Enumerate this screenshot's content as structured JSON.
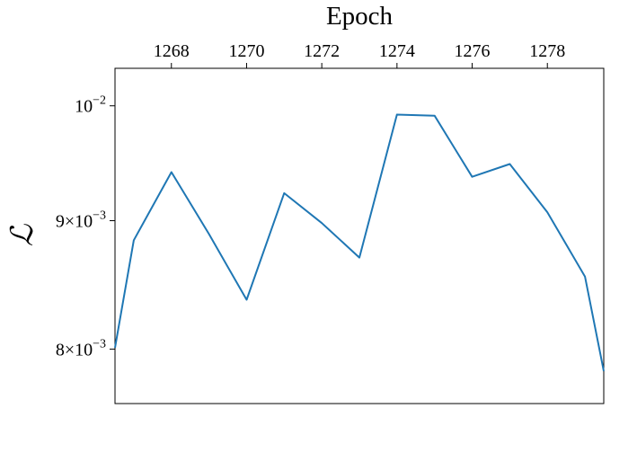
{
  "chart_data": {
    "type": "line",
    "title": "",
    "xlabel": "Epoch",
    "xlabel_position": "top",
    "ylabel": "ℒ",
    "y_scale": "log",
    "xlim": [
      1266.5,
      1279.5
    ],
    "ylim": [
      0.00761,
      0.01035
    ],
    "x_ticks": [
      1268,
      1270,
      1272,
      1274,
      1276,
      1278
    ],
    "x_tick_labels": [
      "1268",
      "1270",
      "1272",
      "1274",
      "1276",
      "1278"
    ],
    "y_ticks": [
      {
        "value": 0.01,
        "mantissa": "",
        "base": "10",
        "exponent": "−2"
      },
      {
        "value": 0.009,
        "mantissa": "9×",
        "base": "10",
        "exponent": "−3"
      },
      {
        "value": 0.008,
        "mantissa": "8×",
        "base": "10",
        "exponent": "−3"
      }
    ],
    "grid": false,
    "series": [
      {
        "color": "#1f77b4",
        "x": [
          1266.5,
          1267,
          1268,
          1269,
          1270,
          1271,
          1272,
          1273,
          1274,
          1275,
          1276,
          1277,
          1278,
          1279,
          1279.5
        ],
        "y": [
          0.00801,
          0.00884,
          0.00941,
          0.00889,
          0.00837,
          0.00923,
          0.00898,
          0.0087,
          0.00992,
          0.00991,
          0.00937,
          0.00948,
          0.00907,
          0.00855,
          0.00784
        ]
      }
    ]
  }
}
